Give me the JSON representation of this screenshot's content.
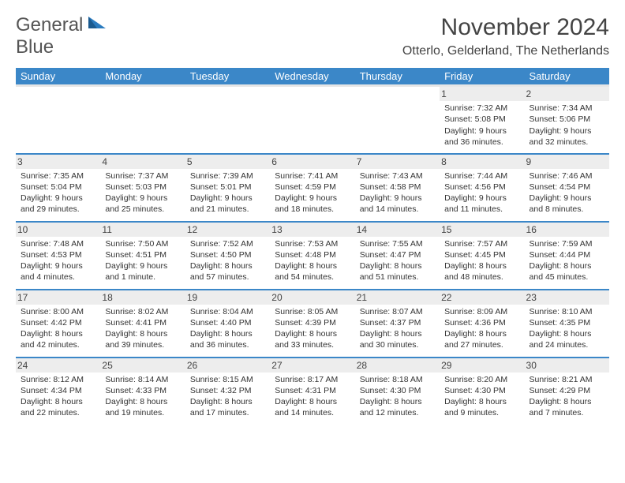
{
  "brand": {
    "part1": "General",
    "part2": "Blue"
  },
  "title": "November 2024",
  "location": "Otterlo, Gelderland, The Netherlands",
  "colors": {
    "header_bg": "#3b87c8",
    "header_text": "#ffffff",
    "row_divider": "#3b87c8",
    "daynum_bg": "#ededed",
    "brand_blue": "#2b7bbf"
  },
  "typography": {
    "title_fontsize": 30,
    "body_fontsize": 10.5
  },
  "dayHeaders": [
    "Sunday",
    "Monday",
    "Tuesday",
    "Wednesday",
    "Thursday",
    "Friday",
    "Saturday"
  ],
  "weeks": [
    [
      {
        "n": "",
        "sr": "",
        "ss": "",
        "dl": ""
      },
      {
        "n": "",
        "sr": "",
        "ss": "",
        "dl": ""
      },
      {
        "n": "",
        "sr": "",
        "ss": "",
        "dl": ""
      },
      {
        "n": "",
        "sr": "",
        "ss": "",
        "dl": ""
      },
      {
        "n": "",
        "sr": "",
        "ss": "",
        "dl": ""
      },
      {
        "n": "1",
        "sr": "Sunrise: 7:32 AM",
        "ss": "Sunset: 5:08 PM",
        "dl": "Daylight: 9 hours and 36 minutes."
      },
      {
        "n": "2",
        "sr": "Sunrise: 7:34 AM",
        "ss": "Sunset: 5:06 PM",
        "dl": "Daylight: 9 hours and 32 minutes."
      }
    ],
    [
      {
        "n": "3",
        "sr": "Sunrise: 7:35 AM",
        "ss": "Sunset: 5:04 PM",
        "dl": "Daylight: 9 hours and 29 minutes."
      },
      {
        "n": "4",
        "sr": "Sunrise: 7:37 AM",
        "ss": "Sunset: 5:03 PM",
        "dl": "Daylight: 9 hours and 25 minutes."
      },
      {
        "n": "5",
        "sr": "Sunrise: 7:39 AM",
        "ss": "Sunset: 5:01 PM",
        "dl": "Daylight: 9 hours and 21 minutes."
      },
      {
        "n": "6",
        "sr": "Sunrise: 7:41 AM",
        "ss": "Sunset: 4:59 PM",
        "dl": "Daylight: 9 hours and 18 minutes."
      },
      {
        "n": "7",
        "sr": "Sunrise: 7:43 AM",
        "ss": "Sunset: 4:58 PM",
        "dl": "Daylight: 9 hours and 14 minutes."
      },
      {
        "n": "8",
        "sr": "Sunrise: 7:44 AM",
        "ss": "Sunset: 4:56 PM",
        "dl": "Daylight: 9 hours and 11 minutes."
      },
      {
        "n": "9",
        "sr": "Sunrise: 7:46 AM",
        "ss": "Sunset: 4:54 PM",
        "dl": "Daylight: 9 hours and 8 minutes."
      }
    ],
    [
      {
        "n": "10",
        "sr": "Sunrise: 7:48 AM",
        "ss": "Sunset: 4:53 PM",
        "dl": "Daylight: 9 hours and 4 minutes."
      },
      {
        "n": "11",
        "sr": "Sunrise: 7:50 AM",
        "ss": "Sunset: 4:51 PM",
        "dl": "Daylight: 9 hours and 1 minute."
      },
      {
        "n": "12",
        "sr": "Sunrise: 7:52 AM",
        "ss": "Sunset: 4:50 PM",
        "dl": "Daylight: 8 hours and 57 minutes."
      },
      {
        "n": "13",
        "sr": "Sunrise: 7:53 AM",
        "ss": "Sunset: 4:48 PM",
        "dl": "Daylight: 8 hours and 54 minutes."
      },
      {
        "n": "14",
        "sr": "Sunrise: 7:55 AM",
        "ss": "Sunset: 4:47 PM",
        "dl": "Daylight: 8 hours and 51 minutes."
      },
      {
        "n": "15",
        "sr": "Sunrise: 7:57 AM",
        "ss": "Sunset: 4:45 PM",
        "dl": "Daylight: 8 hours and 48 minutes."
      },
      {
        "n": "16",
        "sr": "Sunrise: 7:59 AM",
        "ss": "Sunset: 4:44 PM",
        "dl": "Daylight: 8 hours and 45 minutes."
      }
    ],
    [
      {
        "n": "17",
        "sr": "Sunrise: 8:00 AM",
        "ss": "Sunset: 4:42 PM",
        "dl": "Daylight: 8 hours and 42 minutes."
      },
      {
        "n": "18",
        "sr": "Sunrise: 8:02 AM",
        "ss": "Sunset: 4:41 PM",
        "dl": "Daylight: 8 hours and 39 minutes."
      },
      {
        "n": "19",
        "sr": "Sunrise: 8:04 AM",
        "ss": "Sunset: 4:40 PM",
        "dl": "Daylight: 8 hours and 36 minutes."
      },
      {
        "n": "20",
        "sr": "Sunrise: 8:05 AM",
        "ss": "Sunset: 4:39 PM",
        "dl": "Daylight: 8 hours and 33 minutes."
      },
      {
        "n": "21",
        "sr": "Sunrise: 8:07 AM",
        "ss": "Sunset: 4:37 PM",
        "dl": "Daylight: 8 hours and 30 minutes."
      },
      {
        "n": "22",
        "sr": "Sunrise: 8:09 AM",
        "ss": "Sunset: 4:36 PM",
        "dl": "Daylight: 8 hours and 27 minutes."
      },
      {
        "n": "23",
        "sr": "Sunrise: 8:10 AM",
        "ss": "Sunset: 4:35 PM",
        "dl": "Daylight: 8 hours and 24 minutes."
      }
    ],
    [
      {
        "n": "24",
        "sr": "Sunrise: 8:12 AM",
        "ss": "Sunset: 4:34 PM",
        "dl": "Daylight: 8 hours and 22 minutes."
      },
      {
        "n": "25",
        "sr": "Sunrise: 8:14 AM",
        "ss": "Sunset: 4:33 PM",
        "dl": "Daylight: 8 hours and 19 minutes."
      },
      {
        "n": "26",
        "sr": "Sunrise: 8:15 AM",
        "ss": "Sunset: 4:32 PM",
        "dl": "Daylight: 8 hours and 17 minutes."
      },
      {
        "n": "27",
        "sr": "Sunrise: 8:17 AM",
        "ss": "Sunset: 4:31 PM",
        "dl": "Daylight: 8 hours and 14 minutes."
      },
      {
        "n": "28",
        "sr": "Sunrise: 8:18 AM",
        "ss": "Sunset: 4:30 PM",
        "dl": "Daylight: 8 hours and 12 minutes."
      },
      {
        "n": "29",
        "sr": "Sunrise: 8:20 AM",
        "ss": "Sunset: 4:30 PM",
        "dl": "Daylight: 8 hours and 9 minutes."
      },
      {
        "n": "30",
        "sr": "Sunrise: 8:21 AM",
        "ss": "Sunset: 4:29 PM",
        "dl": "Daylight: 8 hours and 7 minutes."
      }
    ]
  ]
}
